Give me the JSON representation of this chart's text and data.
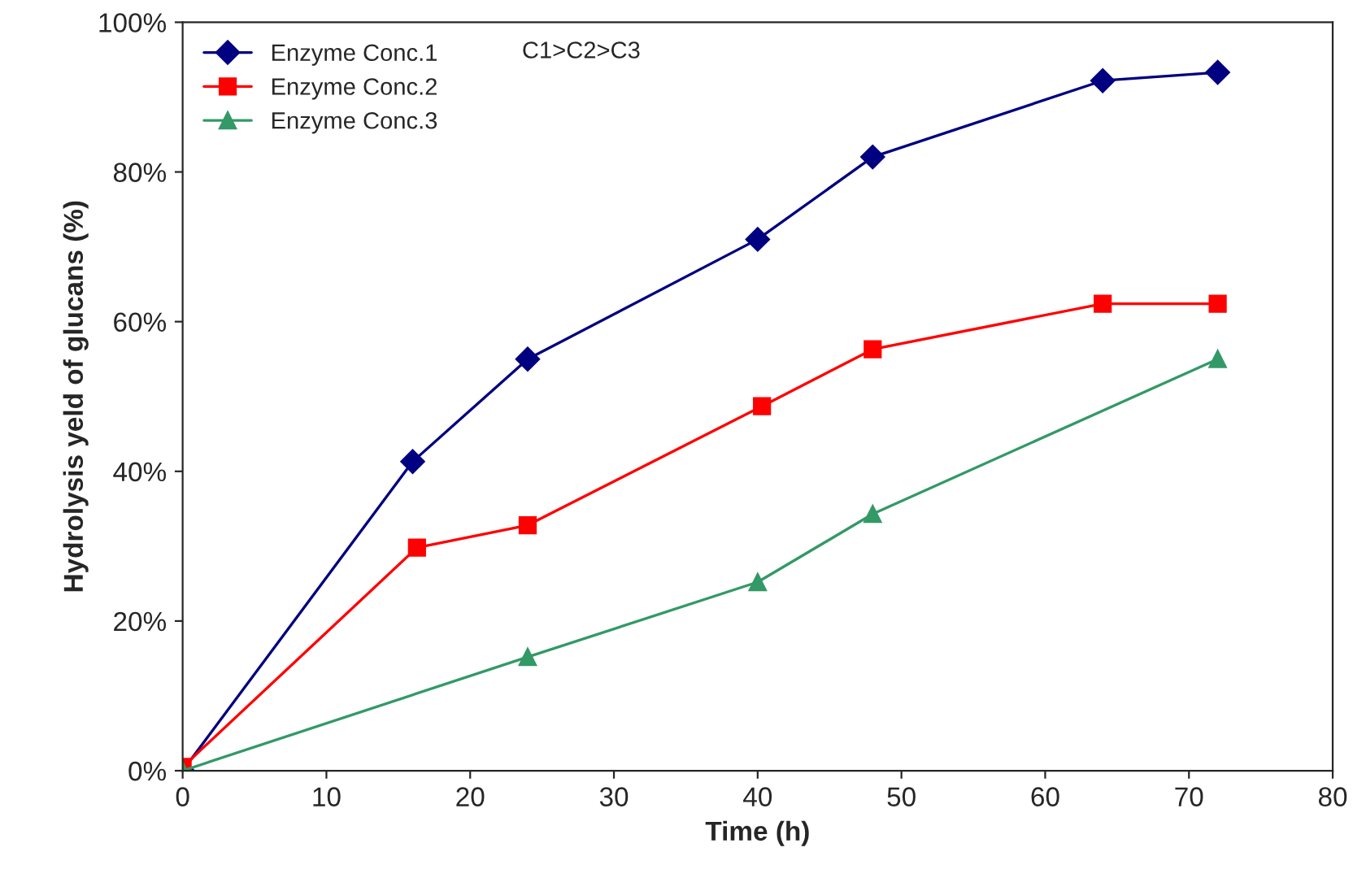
{
  "chart_data": {
    "type": "line",
    "xlabel": "Time (h)",
    "ylabel": "Hydrolysis yeld of glucans (%)",
    "xlim": [
      0,
      80
    ],
    "xticks": [
      0,
      10,
      20,
      30,
      40,
      50,
      60,
      70,
      80
    ],
    "ylim": [
      0,
      100
    ],
    "yticks": [
      {
        "value": 0,
        "label": "0%"
      },
      {
        "value": 20,
        "label": "20%"
      },
      {
        "value": 40,
        "label": "40%"
      },
      {
        "value": 60,
        "label": "60%"
      },
      {
        "value": 80,
        "label": "80%"
      },
      {
        "value": 100,
        "label": "100%"
      }
    ],
    "grid": false,
    "legend": "top left",
    "annotations": [
      "C1>C2>C3"
    ],
    "series": [
      {
        "name": "Enzyme Conc.1",
        "color": "#000080",
        "marker": "diamond",
        "x": [
          0,
          16,
          24,
          40,
          48,
          64,
          72
        ],
        "values": [
          0,
          41.3,
          55,
          71,
          82,
          92.2,
          93.3
        ]
      },
      {
        "name": "Enzyme Conc.2",
        "color": "#ff0000",
        "marker": "square",
        "x": [
          0,
          16.3,
          24,
          40.3,
          48,
          64,
          72
        ],
        "values": [
          0.5,
          29.8,
          32.8,
          48.7,
          56.3,
          62.4,
          62.4
        ]
      },
      {
        "name": "Enzyme Conc.3",
        "color": "#339966",
        "marker": "triangle",
        "x": [
          0,
          24,
          40,
          48,
          72
        ],
        "values": [
          0,
          15.2,
          25.2,
          34.3,
          55
        ]
      }
    ]
  }
}
